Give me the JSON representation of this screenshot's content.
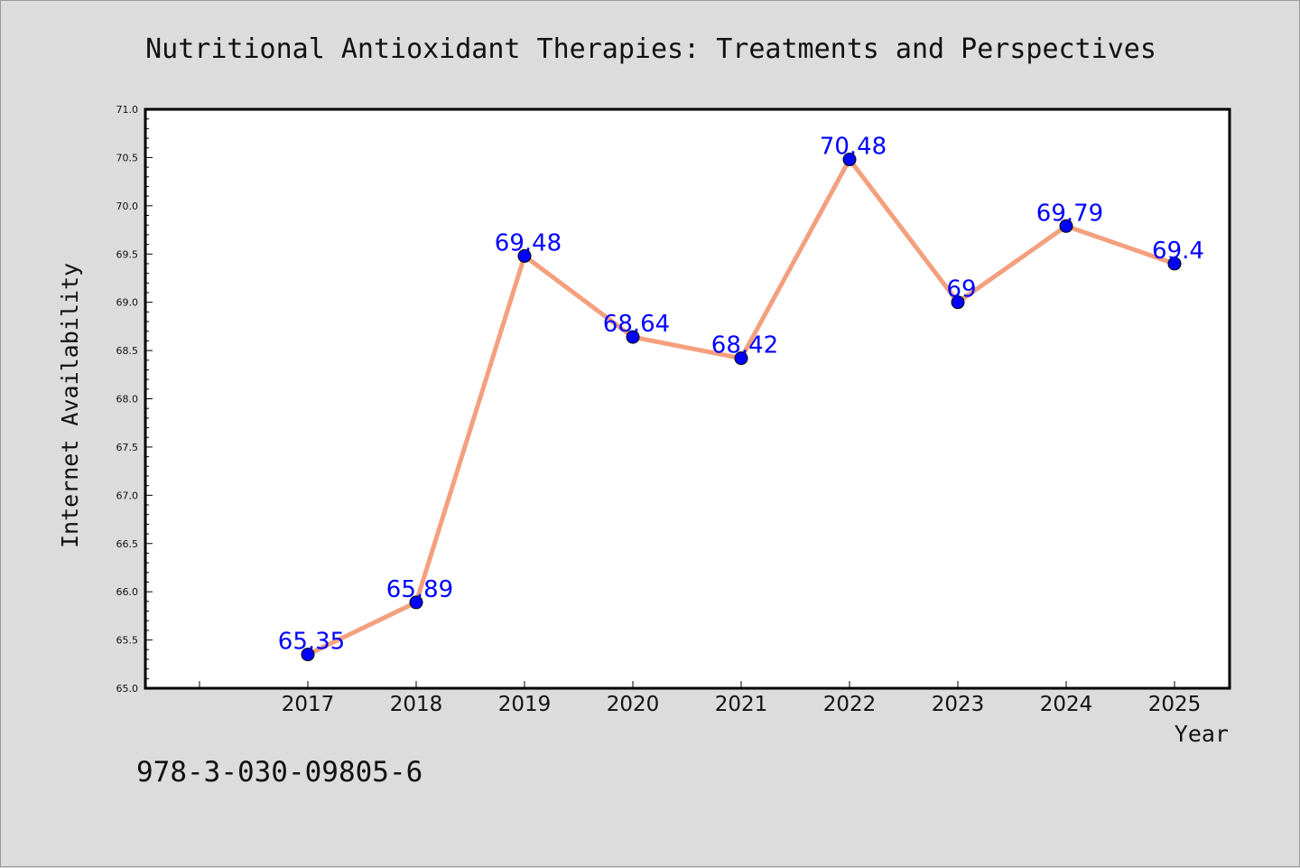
{
  "chart_data": {
    "type": "line",
    "title": "Nutritional Antioxidant Therapies: Treatments and Perspectives",
    "xlabel": "Year",
    "ylabel": "Internet Availability",
    "categories": [
      "2017",
      "2018",
      "2019",
      "2020",
      "2021",
      "2022",
      "2023",
      "2024",
      "2025"
    ],
    "series": [
      {
        "values": [
          65.35,
          65.89,
          69.48,
          68.64,
          68.42,
          70.48,
          69,
          69.79,
          69.4
        ],
        "data_labels": [
          "65.35",
          "65.89",
          "69.48",
          "68.64",
          "68.42",
          "70.48",
          "69",
          "69.79",
          "69.4"
        ]
      }
    ],
    "ylim": [
      65.0,
      71.0
    ],
    "yticks": [
      "65.0",
      "65.5",
      "66.0",
      "66.5",
      "67.0",
      "67.5",
      "68.0",
      "68.5",
      "69.0",
      "69.5",
      "70.0",
      "70.5",
      "71.0"
    ],
    "grid": false,
    "line_color": "#f4a07e",
    "marker_color": "#0000ff",
    "label_color": "#0000ff"
  },
  "footer": {
    "isbn": "978-3-030-09805-6"
  }
}
